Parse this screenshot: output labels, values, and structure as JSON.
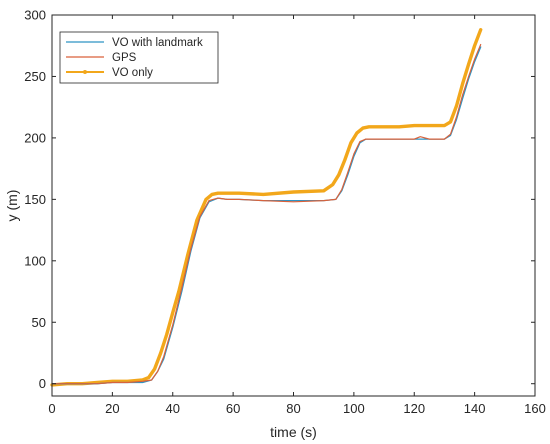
{
  "chart_data": {
    "type": "line",
    "title": "",
    "xlabel": "time (s)",
    "ylabel": "y (m)",
    "xlim": [
      0,
      160
    ],
    "ylim": [
      -10,
      300
    ],
    "xticks": [
      0,
      20,
      40,
      60,
      80,
      100,
      120,
      140,
      160
    ],
    "yticks": [
      0,
      50,
      100,
      150,
      200,
      250,
      300
    ],
    "grid": false,
    "legend_position": "top-left",
    "series": [
      {
        "name": "VO with landmark",
        "color": "#2f93c4",
        "x": [
          0,
          5,
          10,
          15,
          20,
          25,
          30,
          33,
          35,
          37,
          40,
          43,
          46,
          49,
          52,
          55,
          58,
          62,
          70,
          80,
          90,
          94,
          96,
          98,
          100,
          102,
          104,
          108,
          115,
          122,
          125,
          130,
          132,
          134,
          136,
          138,
          140,
          142
        ],
        "y": [
          0,
          0,
          0,
          0,
          1,
          1,
          1,
          3,
          10,
          20,
          46,
          75,
          108,
          135,
          148,
          151,
          150,
          150,
          149,
          149,
          149,
          150,
          157,
          170,
          185,
          196,
          199,
          199,
          199,
          199,
          199,
          199,
          202,
          215,
          232,
          248,
          262,
          274
        ]
      },
      {
        "name": "GPS",
        "color": "#d9623b",
        "x": [
          0,
          5,
          10,
          15,
          20,
          25,
          30,
          33,
          35,
          37,
          40,
          43,
          46,
          49,
          52,
          55,
          58,
          62,
          70,
          80,
          90,
          94,
          96,
          98,
          100,
          102,
          104,
          108,
          115,
          120,
          122,
          125,
          130,
          132,
          134,
          136,
          138,
          140,
          142
        ],
        "y": [
          0,
          0,
          0,
          0,
          1,
          1,
          2,
          3,
          10,
          22,
          48,
          78,
          110,
          136,
          149,
          151,
          150,
          150,
          149,
          148,
          149,
          150,
          158,
          172,
          187,
          197,
          199,
          199,
          199,
          199,
          201,
          199,
          199,
          203,
          217,
          235,
          250,
          264,
          276
        ]
      },
      {
        "name": "VO only",
        "color": "#f2a71b",
        "x": [
          0,
          5,
          10,
          15,
          20,
          25,
          30,
          32,
          34,
          36,
          38,
          40,
          42,
          45,
          48,
          51,
          53,
          55,
          58,
          62,
          70,
          80,
          90,
          93,
          95,
          97,
          99,
          101,
          103,
          105,
          110,
          115,
          120,
          125,
          130,
          132,
          134,
          136,
          138,
          140,
          142
        ],
        "y": [
          -1,
          0,
          0,
          1,
          2,
          2,
          3,
          5,
          12,
          25,
          40,
          58,
          75,
          105,
          133,
          150,
          154,
          155,
          155,
          155,
          154,
          156,
          157,
          162,
          170,
          182,
          196,
          204,
          208,
          209,
          209,
          209,
          210,
          210,
          210,
          213,
          226,
          244,
          260,
          275,
          288
        ]
      }
    ]
  }
}
